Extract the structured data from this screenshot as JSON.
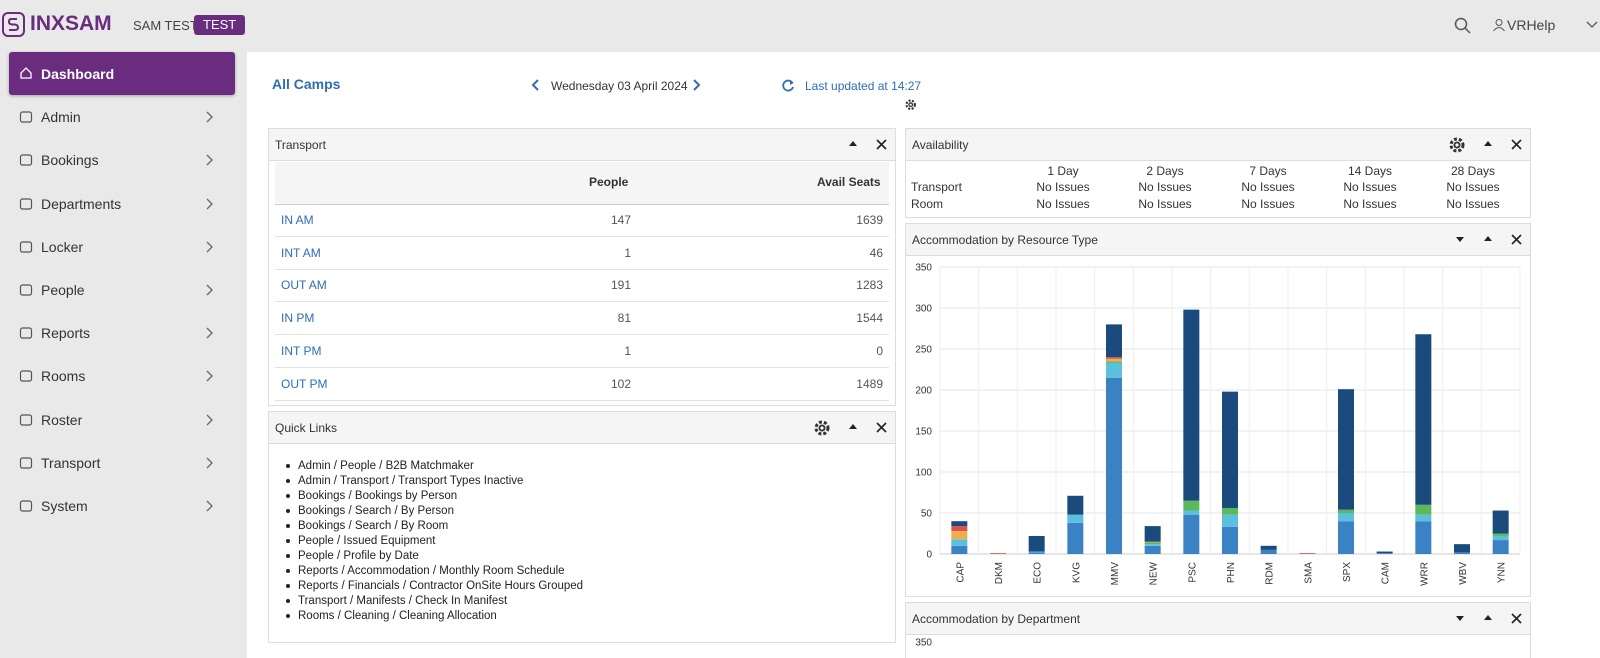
{
  "header": {
    "logo": "INXSAM",
    "site": "SAM TEST",
    "badge": "TEST",
    "user": "VRHelp"
  },
  "sidebar": [
    "Dashboard",
    "Admin",
    "Bookings",
    "Departments",
    "Locker",
    "People",
    "Reports",
    "Rooms",
    "Roster",
    "Transport",
    "System"
  ],
  "toolbar": {
    "title": "All Camps",
    "date": "Wednesday 03 April 2024",
    "updated": "Last updated at 14:27"
  },
  "transport": {
    "title": "Transport",
    "columns": [
      "People",
      "Avail Seats"
    ],
    "rows": [
      {
        "name": "IN AM",
        "people": 147,
        "seats": 1639
      },
      {
        "name": "INT AM",
        "people": 1,
        "seats": 46
      },
      {
        "name": "OUT AM",
        "people": 191,
        "seats": 1283
      },
      {
        "name": "IN PM",
        "people": 81,
        "seats": 1544
      },
      {
        "name": "INT PM",
        "people": 1,
        "seats": 0
      },
      {
        "name": "OUT PM",
        "people": 102,
        "seats": 1489
      }
    ]
  },
  "quick_links": {
    "title": "Quick Links",
    "items": [
      "Admin / People / B2B Matchmaker",
      "Admin / Transport / Transport Types Inactive",
      "Bookings / Bookings by Person",
      "Bookings / Search / By Person",
      "Bookings / Search / By Room",
      "People / Issued Equipment",
      "People / Profile by Date",
      "Reports / Accommodation / Monthly Room Schedule",
      "Reports / Financials / Contractor OnSite Hours Grouped",
      "Transport / Manifests / Check In Manifest",
      "Rooms / Cleaning / Cleaning Allocation"
    ]
  },
  "availability": {
    "title": "Availability",
    "columns": [
      "1 Day",
      "2 Days",
      "7 Days",
      "14 Days",
      "28 Days"
    ],
    "rows": [
      {
        "name": "Transport",
        "values": [
          "No Issues",
          "No Issues",
          "No Issues",
          "No Issues",
          "No Issues"
        ]
      },
      {
        "name": "Room",
        "values": [
          "No Issues",
          "No Issues",
          "No Issues",
          "No Issues",
          "No Issues"
        ]
      }
    ]
  },
  "chart_data": [
    {
      "type": "bar",
      "stacked": true,
      "title": "Accommodation by Resource Type",
      "categories": [
        "CAP",
        "DKM",
        "ECO",
        "KVG",
        "MMV",
        "NEW",
        "PSC",
        "PHN",
        "RDM",
        "SMA",
        "SPX",
        "CAM",
        "WRR",
        "WBV",
        "YNN"
      ],
      "series": [
        {
          "color": "#3a82c4",
          "values": [
            10,
            0,
            2,
            38,
            215,
            10,
            48,
            33,
            5,
            0,
            40,
            1,
            40,
            2,
            17
          ]
        },
        {
          "color": "#5bc0de",
          "values": [
            8,
            0,
            1,
            10,
            18,
            2,
            5,
            15,
            0,
            0,
            10,
            0,
            8,
            0,
            5
          ]
        },
        {
          "color": "#5cb85c",
          "values": [
            0,
            0,
            0,
            0,
            2,
            2,
            12,
            8,
            0,
            0,
            4,
            0,
            12,
            0,
            3
          ]
        },
        {
          "color": "#f0ad4e",
          "values": [
            10,
            0,
            0,
            0,
            3,
            1,
            0,
            0,
            0,
            0,
            0,
            0,
            0,
            0,
            0
          ]
        },
        {
          "color": "#d9534f",
          "values": [
            6,
            1,
            0,
            0,
            2,
            0,
            0,
            0,
            0,
            1,
            0,
            0,
            0,
            0,
            0
          ]
        },
        {
          "color": "#1b4b7c",
          "values": [
            6,
            0,
            19,
            23,
            40,
            19,
            233,
            142,
            5,
            0,
            147,
            2,
            208,
            10,
            28
          ]
        }
      ],
      "ylim": [
        0,
        350
      ],
      "yticks": [
        0,
        50,
        100,
        150,
        200,
        250,
        300,
        350
      ],
      "grid": true
    },
    {
      "type": "bar",
      "title": "Accommodation by Department",
      "ylim": [
        0,
        350
      ],
      "yticks": [
        350
      ]
    }
  ]
}
